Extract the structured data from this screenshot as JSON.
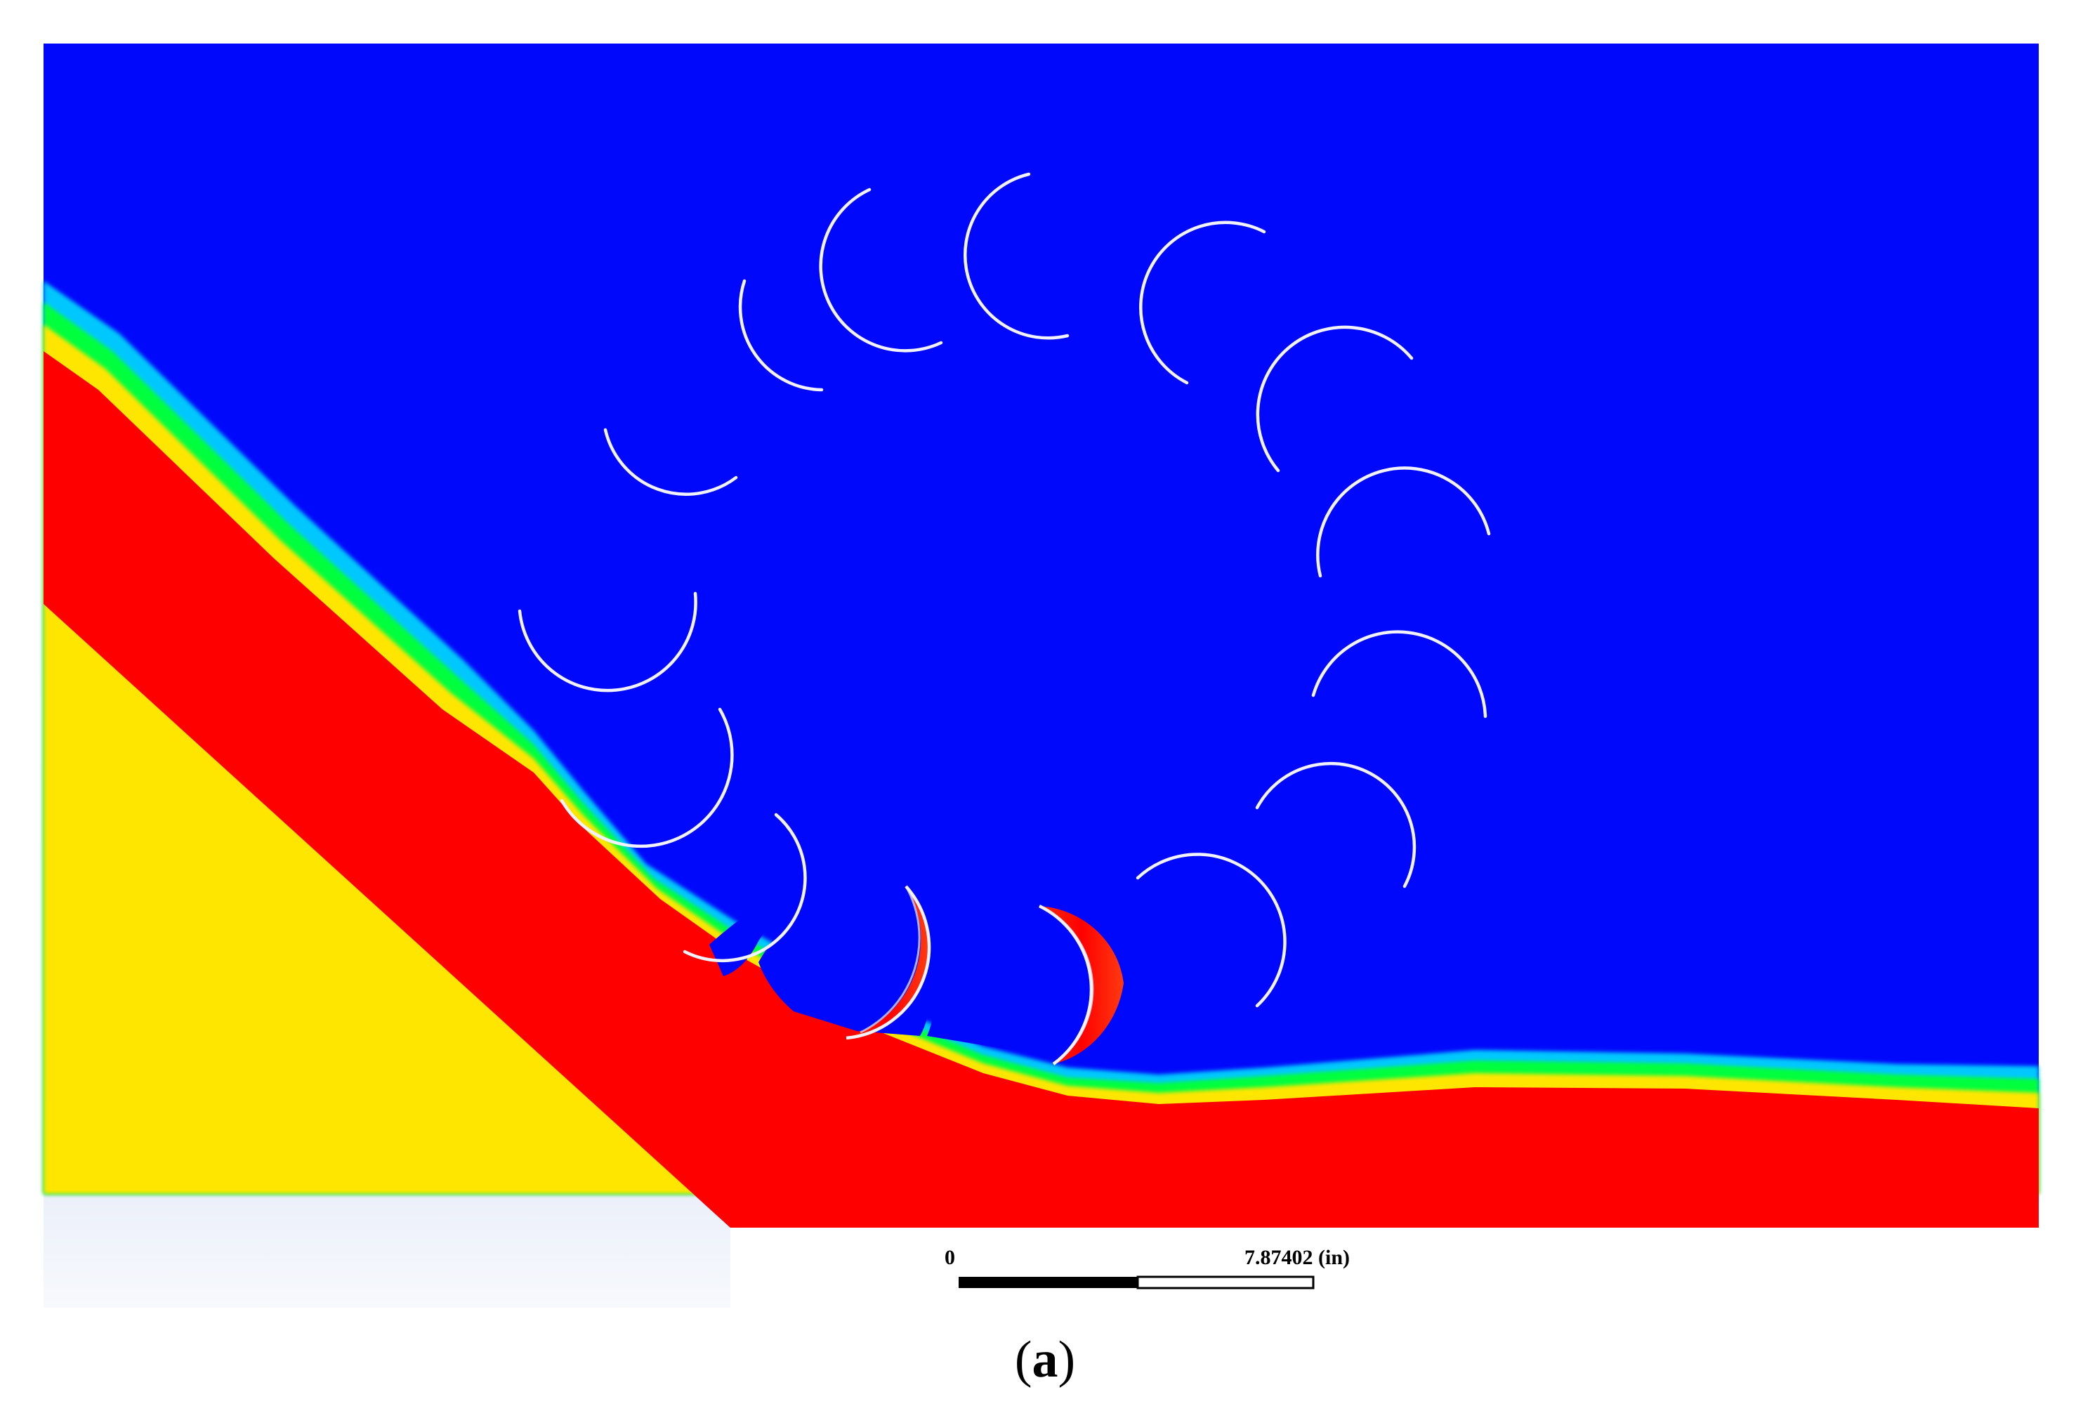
{
  "figure": {
    "scale_bar": {
      "start_label": "0",
      "end_label": "7.87402 (in)"
    },
    "caption": {
      "open_paren": "(",
      "letter": "a",
      "close_paren": ")"
    },
    "colors": {
      "air": "#0008fb",
      "water": "#ff0000",
      "interface_green": "#00ff3c",
      "interface_yellow": "#ffe600",
      "interface_cyan": "#00c8ff",
      "blade": "#f2f2ff",
      "ramp_gradient_top": "#b1bfe8",
      "ramp_gradient_bottom": "#f7f9fd"
    }
  }
}
